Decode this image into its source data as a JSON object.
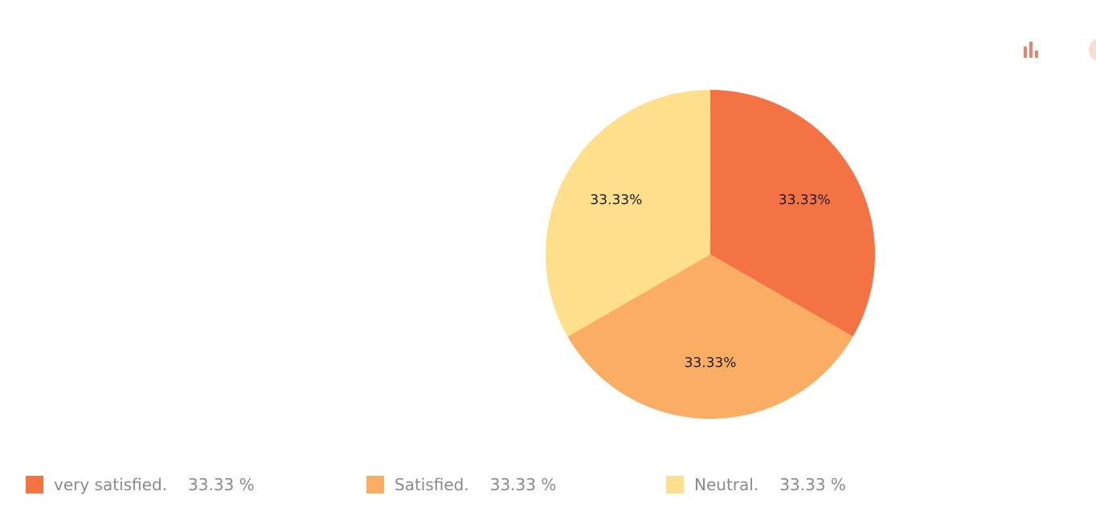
{
  "toolbar": {
    "bar_icon": "bar-chart-icon",
    "pie_icon": "pie-chart-icon",
    "icon_color": "#e8826a",
    "icon_color_light": "#f8dcd6"
  },
  "chart_data": {
    "type": "pie",
    "categories": [
      "very satisfied.",
      "Satisfied.",
      "Neutral."
    ],
    "values": [
      33.33,
      33.33,
      33.33
    ],
    "slice_labels": [
      "33.33%",
      "33.33%",
      "33.33%"
    ],
    "colors": [
      "#f37344",
      "#fbad63",
      "#fddf8c"
    ],
    "legend_position": "bottom"
  },
  "legend": {
    "items": [
      {
        "label": "very satisfied.",
        "value": "33.33 %",
        "color": "#f37344"
      },
      {
        "label": "Satisfied.",
        "value": "33.33 %",
        "color": "#fbad63"
      },
      {
        "label": "Neutral.",
        "value": "33.33 %",
        "color": "#fddf8c"
      }
    ]
  }
}
